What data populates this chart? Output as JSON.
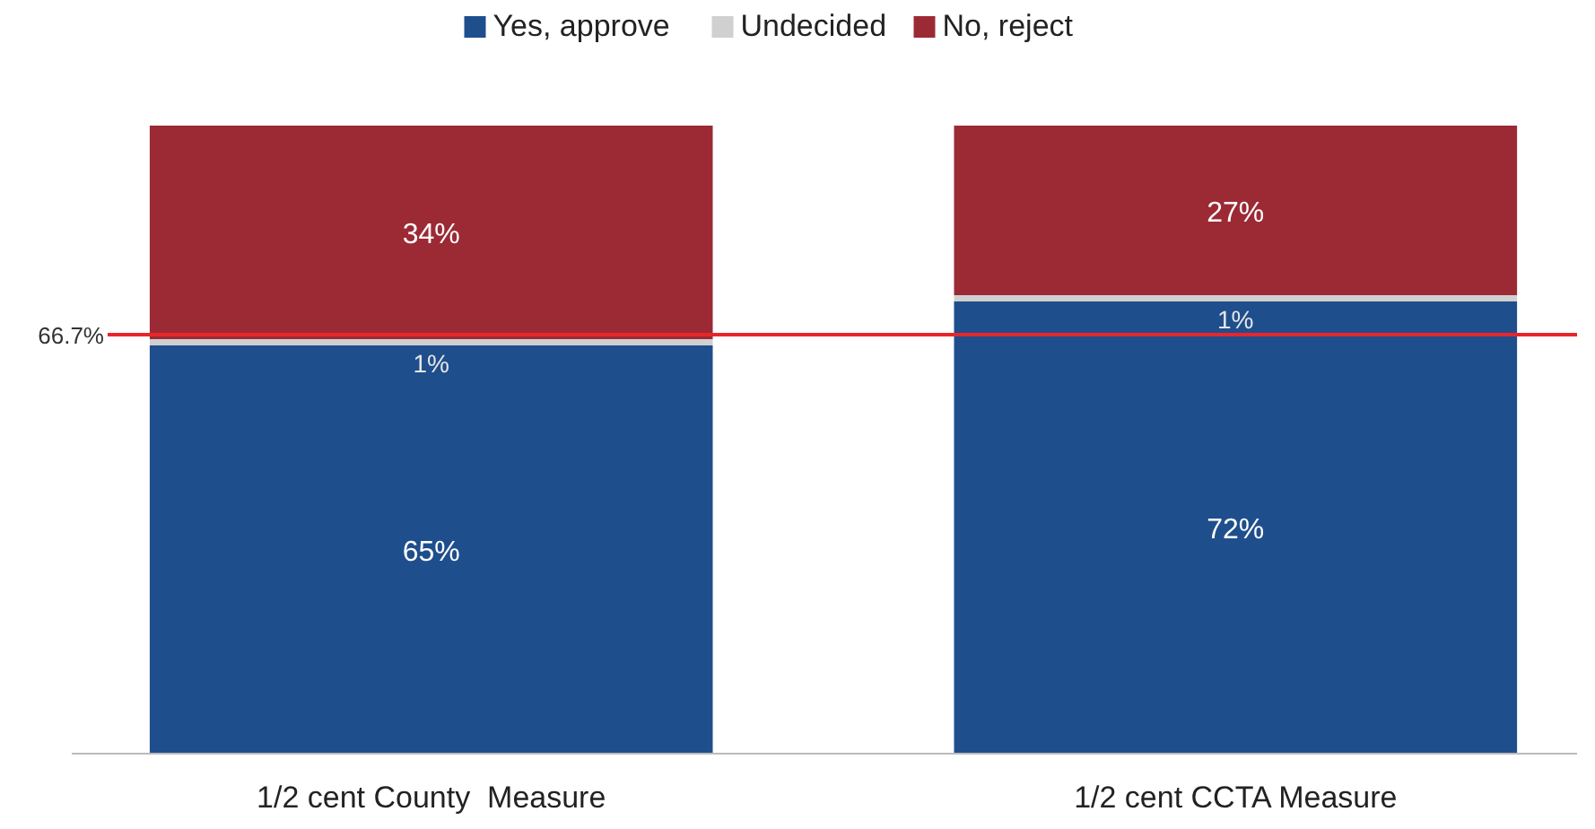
{
  "chart_data": {
    "type": "bar",
    "stacked": true,
    "categories": [
      "1/2 cent County  Measure",
      "1/2 cent CCTA Measure"
    ],
    "series": [
      {
        "name": "Yes, approve",
        "color": "#1f4e8c",
        "values": [
          65,
          72
        ],
        "value_labels": [
          "65%",
          "72%"
        ]
      },
      {
        "name": "Undecided",
        "color": "#d0d0d0",
        "values": [
          1,
          1
        ],
        "value_labels": [
          "1%",
          "1%"
        ]
      },
      {
        "name": "No, reject",
        "color": "#9b2a35",
        "values": [
          34,
          27
        ],
        "value_labels": [
          "34%",
          "27%"
        ]
      }
    ],
    "ref_lines": [
      {
        "axis": "y",
        "value": 66.7,
        "label": "66.7%",
        "color": "#e8262a"
      }
    ],
    "legend": "top"
  }
}
